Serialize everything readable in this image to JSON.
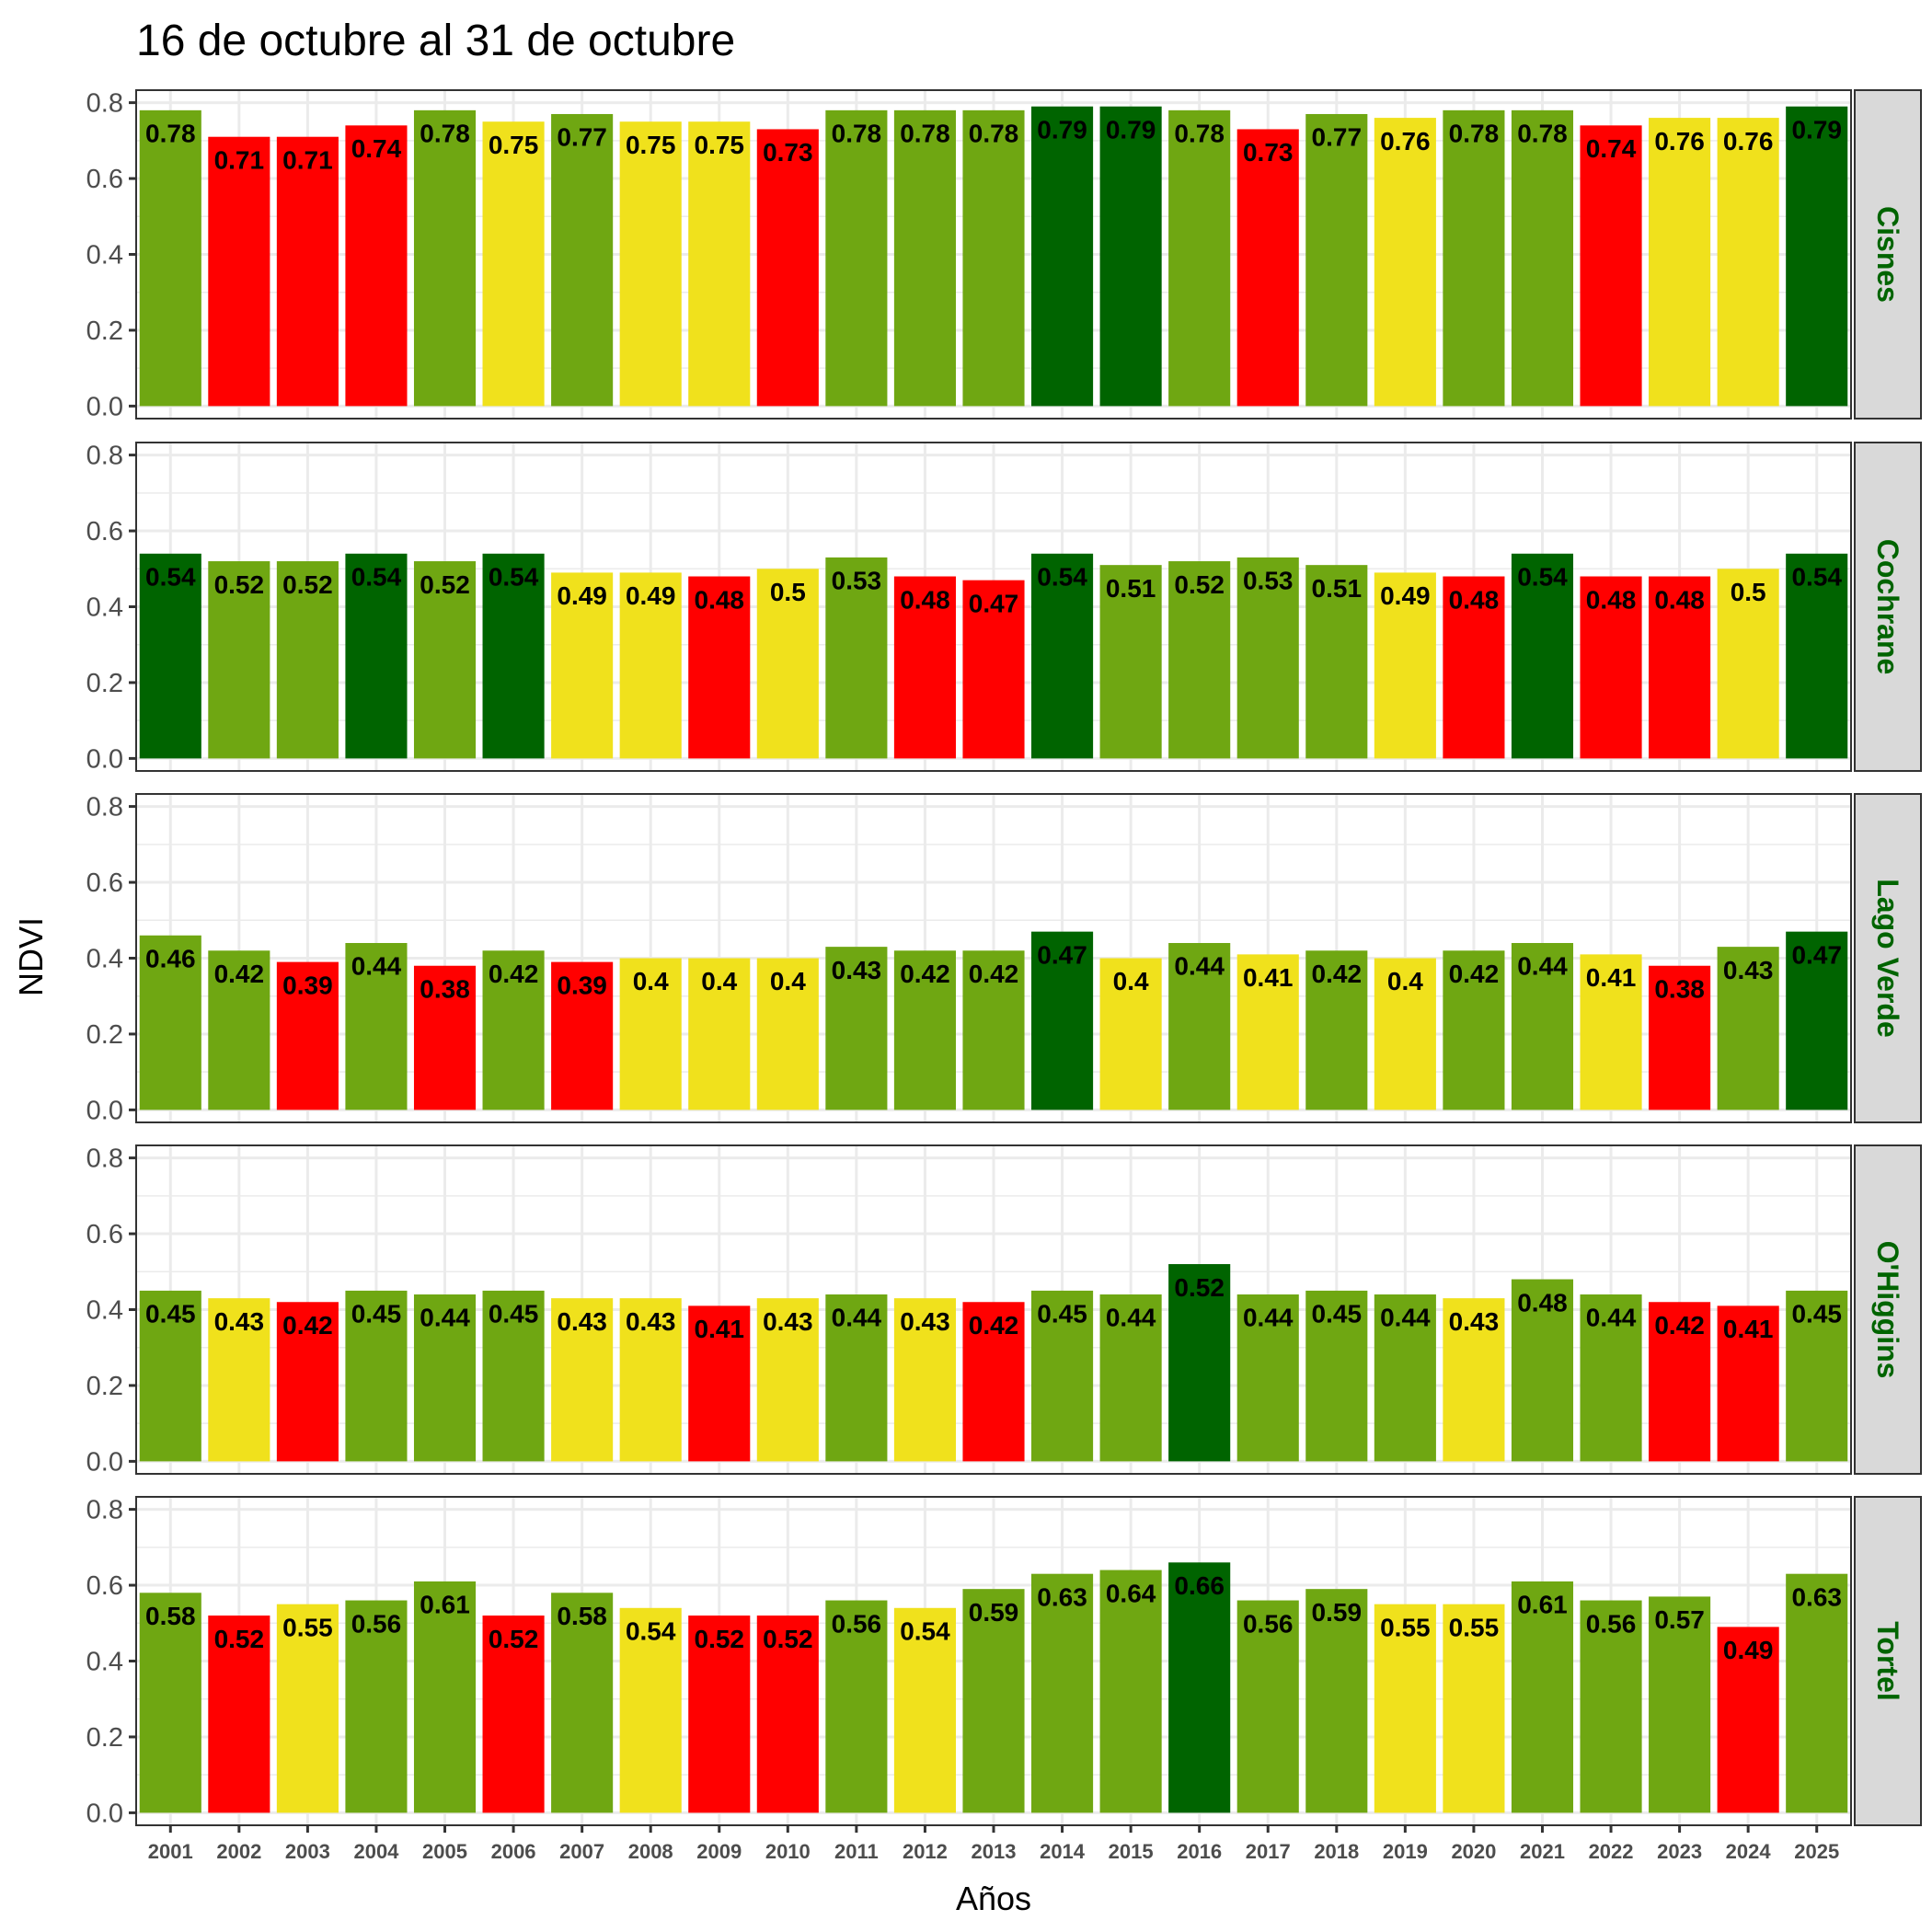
{
  "chart_data": {
    "type": "bar",
    "title": "16 de octubre al 31 de octubre",
    "xlabel": "Años",
    "ylabel": "NDVI",
    "ylim": [
      0,
      0.8
    ],
    "yticks": [
      "0.0",
      "0.2",
      "0.4",
      "0.6",
      "0.8"
    ],
    "ytick_values": [
      0,
      0.2,
      0.4,
      0.6,
      0.8
    ],
    "grid": true,
    "facet_layout": "rows",
    "categories": [
      "2001",
      "2002",
      "2003",
      "2004",
      "2005",
      "2006",
      "2007",
      "2008",
      "2009",
      "2010",
      "2011",
      "2012",
      "2013",
      "2014",
      "2015",
      "2016",
      "2017",
      "2018",
      "2019",
      "2020",
      "2021",
      "2022",
      "2023",
      "2024",
      "2025"
    ],
    "color_classes": {
      "very_high": "#006400",
      "high": "#6fa712",
      "medium": "#f0e11c",
      "low": "#ff0000"
    },
    "strip_text_color": "#006400",
    "series": [
      {
        "name": "Cisnes",
        "values": [
          0.78,
          0.71,
          0.71,
          0.74,
          0.78,
          0.75,
          0.77,
          0.75,
          0.75,
          0.73,
          0.78,
          0.78,
          0.78,
          0.79,
          0.79,
          0.78,
          0.73,
          0.77,
          0.76,
          0.78,
          0.78,
          0.74,
          0.76,
          0.76,
          0.79
        ],
        "classes": [
          "high",
          "low",
          "low",
          "low",
          "high",
          "medium",
          "high",
          "medium",
          "medium",
          "low",
          "high",
          "high",
          "high",
          "very_high",
          "very_high",
          "high",
          "low",
          "high",
          "medium",
          "high",
          "high",
          "low",
          "medium",
          "medium",
          "very_high"
        ]
      },
      {
        "name": "Cochrane",
        "values": [
          0.54,
          0.52,
          0.52,
          0.54,
          0.52,
          0.54,
          0.49,
          0.49,
          0.48,
          0.5,
          0.53,
          0.48,
          0.47,
          0.54,
          0.51,
          0.52,
          0.53,
          0.51,
          0.49,
          0.48,
          0.54,
          0.48,
          0.48,
          0.5,
          0.54
        ],
        "classes": [
          "very_high",
          "high",
          "high",
          "very_high",
          "high",
          "very_high",
          "medium",
          "medium",
          "low",
          "medium",
          "high",
          "low",
          "low",
          "very_high",
          "high",
          "high",
          "high",
          "high",
          "medium",
          "low",
          "very_high",
          "low",
          "low",
          "medium",
          "very_high"
        ]
      },
      {
        "name": "Lago Verde",
        "values": [
          0.46,
          0.42,
          0.39,
          0.44,
          0.38,
          0.42,
          0.39,
          0.4,
          0.4,
          0.4,
          0.43,
          0.42,
          0.42,
          0.47,
          0.4,
          0.44,
          0.41,
          0.42,
          0.4,
          0.42,
          0.44,
          0.41,
          0.38,
          0.43,
          0.47
        ],
        "classes": [
          "high",
          "high",
          "low",
          "high",
          "low",
          "high",
          "low",
          "medium",
          "medium",
          "medium",
          "high",
          "high",
          "high",
          "very_high",
          "medium",
          "high",
          "medium",
          "high",
          "medium",
          "high",
          "high",
          "medium",
          "low",
          "high",
          "very_high"
        ]
      },
      {
        "name": "O'Higgins",
        "values": [
          0.45,
          0.43,
          0.42,
          0.45,
          0.44,
          0.45,
          0.43,
          0.43,
          0.41,
          0.43,
          0.44,
          0.43,
          0.42,
          0.45,
          0.44,
          0.52,
          0.44,
          0.45,
          0.44,
          0.43,
          0.48,
          0.44,
          0.42,
          0.41,
          0.45
        ],
        "classes": [
          "high",
          "medium",
          "low",
          "high",
          "high",
          "high",
          "medium",
          "medium",
          "low",
          "medium",
          "high",
          "medium",
          "low",
          "high",
          "high",
          "very_high",
          "high",
          "high",
          "high",
          "medium",
          "high",
          "high",
          "low",
          "low",
          "high"
        ]
      },
      {
        "name": "Tortel",
        "values": [
          0.58,
          0.52,
          0.55,
          0.56,
          0.61,
          0.52,
          0.58,
          0.54,
          0.52,
          0.52,
          0.56,
          0.54,
          0.59,
          0.63,
          0.64,
          0.66,
          0.56,
          0.59,
          0.55,
          0.55,
          0.61,
          0.56,
          0.57,
          0.49,
          0.63
        ],
        "classes": [
          "high",
          "low",
          "medium",
          "high",
          "high",
          "low",
          "high",
          "medium",
          "low",
          "low",
          "high",
          "medium",
          "high",
          "high",
          "high",
          "very_high",
          "high",
          "high",
          "medium",
          "medium",
          "high",
          "high",
          "high",
          "low",
          "high"
        ]
      }
    ]
  }
}
